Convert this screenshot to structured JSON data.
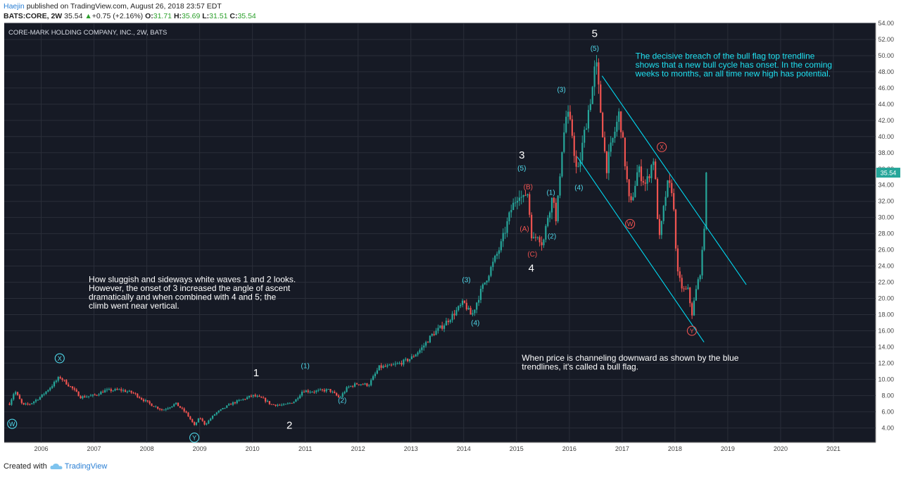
{
  "header": {
    "author": "Haejin",
    "published": " published on TradingView.com, August 26, 2018 23:57 EDT",
    "symbol": "BATS:CORE, 2W",
    "last": "35.54",
    "change_arrow": "▲",
    "change": "+0.75 (+2.16%)",
    "open_label": "O:",
    "open": "31.71",
    "high_label": "H:",
    "high": "35.69",
    "low_label": "L:",
    "low": "31.51",
    "close_label": "C:",
    "close": "35.54"
  },
  "colors": {
    "background": "#161a25",
    "grid": "#2a2e39",
    "up": "#26a69a",
    "down": "#ef5350",
    "trendline": "#00d8f0",
    "note_cyan": "#1fe0f0",
    "note_white": "#ffffff",
    "price_tag": "#26a69a"
  },
  "footer": {
    "created_with": "Created with",
    "brand": "TradingView",
    "logo_icon": "tradingview-cloud-icon"
  },
  "chart_data": {
    "type": "candlestick",
    "title": "CORE-MARK HOLDING COMPANY, INC., 2W, BATS",
    "xlabel": "",
    "ylabel": "",
    "x_range": [
      2005.3,
      2021.8
    ],
    "ylim": [
      2.2,
      54.0
    ],
    "grid": true,
    "y_ticks": [
      "4.00",
      "6.00",
      "8.00",
      "10.00",
      "12.00",
      "14.00",
      "16.00",
      "18.00",
      "20.00",
      "22.00",
      "24.00",
      "26.00",
      "28.00",
      "30.00",
      "32.00",
      "34.00",
      "36.00",
      "38.00",
      "40.00",
      "42.00",
      "44.00",
      "46.00",
      "48.00",
      "50.00",
      "52.00",
      "54.00"
    ],
    "x_ticks": [
      "2006",
      "2007",
      "2008",
      "2009",
      "2010",
      "2011",
      "2012",
      "2013",
      "2014",
      "2015",
      "2016",
      "2017",
      "2018",
      "2019",
      "2020",
      "2021"
    ],
    "last_price_label": "35.54",
    "price_path": [
      [
        2005.4,
        7.0
      ],
      [
        2005.5,
        8.6
      ],
      [
        2005.65,
        6.8
      ],
      [
        2005.8,
        7.0
      ],
      [
        2006.0,
        7.9
      ],
      [
        2006.2,
        9.2
      ],
      [
        2006.35,
        10.3
      ],
      [
        2006.4,
        10.0
      ],
      [
        2006.6,
        8.8
      ],
      [
        2006.75,
        7.8
      ],
      [
        2007.0,
        8.0
      ],
      [
        2007.2,
        8.6
      ],
      [
        2007.5,
        8.7
      ],
      [
        2007.75,
        8.3
      ],
      [
        2007.9,
        7.6
      ],
      [
        2008.1,
        6.8
      ],
      [
        2008.3,
        6.2
      ],
      [
        2008.55,
        7.0
      ],
      [
        2008.75,
        5.8
      ],
      [
        2008.9,
        4.3
      ],
      [
        2009.0,
        5.3
      ],
      [
        2009.1,
        4.4
      ],
      [
        2009.3,
        5.8
      ],
      [
        2009.6,
        7.0
      ],
      [
        2009.85,
        7.6
      ],
      [
        2010.0,
        8.0
      ],
      [
        2010.2,
        7.6
      ],
      [
        2010.35,
        6.9
      ],
      [
        2010.6,
        6.8
      ],
      [
        2010.8,
        7.3
      ],
      [
        2010.95,
        8.6
      ],
      [
        2011.15,
        8.5
      ],
      [
        2011.45,
        8.7
      ],
      [
        2011.65,
        7.7
      ],
      [
        2011.8,
        9.0
      ],
      [
        2012.0,
        9.5
      ],
      [
        2012.2,
        9.3
      ],
      [
        2012.4,
        11.5
      ],
      [
        2012.6,
        11.6
      ],
      [
        2012.8,
        12.0
      ],
      [
        2013.0,
        12.6
      ],
      [
        2013.2,
        13.8
      ],
      [
        2013.4,
        15.5
      ],
      [
        2013.6,
        16.6
      ],
      [
        2013.8,
        18.0
      ],
      [
        2014.0,
        19.5
      ],
      [
        2014.15,
        17.8
      ],
      [
        2014.3,
        20.5
      ],
      [
        2014.5,
        23.5
      ],
      [
        2014.7,
        26.5
      ],
      [
        2014.9,
        31.0
      ],
      [
        2015.05,
        33.2
      ],
      [
        2015.12,
        32.0
      ],
      [
        2015.2,
        33.5
      ],
      [
        2015.3,
        27.0
      ],
      [
        2015.4,
        28.0
      ],
      [
        2015.5,
        26.6
      ],
      [
        2015.6,
        30.5
      ],
      [
        2015.7,
        33.0
      ],
      [
        2015.75,
        29.0
      ],
      [
        2015.85,
        38.0
      ],
      [
        2015.95,
        43.0
      ],
      [
        2016.05,
        40.5
      ],
      [
        2016.15,
        35.0
      ],
      [
        2016.3,
        41.0
      ],
      [
        2016.45,
        46.5
      ],
      [
        2016.5,
        49.5
      ],
      [
        2016.58,
        44.0
      ],
      [
        2016.7,
        36.0
      ],
      [
        2016.8,
        39.0
      ],
      [
        2016.95,
        43.0
      ],
      [
        2017.05,
        37.0
      ],
      [
        2017.15,
        31.0
      ],
      [
        2017.3,
        36.0
      ],
      [
        2017.45,
        34.0
      ],
      [
        2017.6,
        37.5
      ],
      [
        2017.7,
        27.0
      ],
      [
        2017.85,
        34.0
      ],
      [
        2017.95,
        33.5
      ],
      [
        2018.05,
        23.0
      ],
      [
        2018.15,
        21.0
      ],
      [
        2018.25,
        21.0
      ],
      [
        2018.32,
        18.0
      ],
      [
        2018.4,
        21.0
      ],
      [
        2018.5,
        24.0
      ],
      [
        2018.58,
        31.7
      ],
      [
        2018.62,
        35.54
      ]
    ],
    "trendlines": [
      {
        "name": "upper",
        "from": [
          2016.62,
          47.5
        ],
        "to": [
          2019.35,
          21.7
        ]
      },
      {
        "name": "lower",
        "from": [
          2016.15,
          37.5
        ],
        "to": [
          2018.55,
          14.6
        ]
      }
    ],
    "annotations": [
      {
        "id": "wave-5",
        "text": "5",
        "style": "white",
        "x": 2016.48,
        "y": 52.3
      },
      {
        "id": "wave-(5)-top",
        "text": "(5)",
        "style": "cyan",
        "x": 2016.48,
        "y": 50.6
      },
      {
        "id": "wave-(3)-2016",
        "text": "(3)",
        "style": "cyan",
        "x": 2015.85,
        "y": 45.5
      },
      {
        "id": "wave-(4)-2016",
        "text": "(4)",
        "style": "cyan",
        "x": 2016.18,
        "y": 33.4
      },
      {
        "id": "wave-3",
        "text": "3",
        "style": "white",
        "x": 2015.1,
        "y": 37.3
      },
      {
        "id": "wave-(5)-2015",
        "text": "(5)",
        "style": "cyan",
        "x": 2015.1,
        "y": 35.8
      },
      {
        "id": "wave-(B)",
        "text": "(B)",
        "style": "red",
        "x": 2015.22,
        "y": 33.5
      },
      {
        "id": "wave-(A)",
        "text": "(A)",
        "style": "red",
        "x": 2015.15,
        "y": 28.3
      },
      {
        "id": "wave-(C)",
        "text": "(C)",
        "style": "red",
        "x": 2015.3,
        "y": 25.2
      },
      {
        "id": "wave-(1)-2015",
        "text": "(1)",
        "style": "cyan",
        "x": 2015.65,
        "y": 32.8
      },
      {
        "id": "wave-(2)-2015",
        "text": "(2)",
        "style": "cyan",
        "x": 2015.67,
        "y": 27.4
      },
      {
        "id": "wave-4",
        "text": "4",
        "style": "white",
        "x": 2015.28,
        "y": 23.3
      },
      {
        "id": "wave-(3)-2014",
        "text": "(3)",
        "style": "cyan",
        "x": 2014.05,
        "y": 22.0
      },
      {
        "id": "wave-(4)-2014",
        "text": "(4)",
        "style": "cyan",
        "x": 2014.22,
        "y": 16.7
      },
      {
        "id": "wave-1",
        "text": "1",
        "style": "white",
        "x": 2010.07,
        "y": 10.4
      },
      {
        "id": "wave-(1)-2011",
        "text": "(1)",
        "style": "cyan",
        "x": 2011.0,
        "y": 11.4
      },
      {
        "id": "wave-(2)-2011",
        "text": "(2)",
        "style": "cyan",
        "x": 2011.7,
        "y": 7.1
      },
      {
        "id": "wave-2",
        "text": "2",
        "style": "white",
        "x": 2010.7,
        "y": 3.9
      }
    ],
    "circled_labels": [
      {
        "id": "circle-X-2006",
        "text": "X",
        "style": "cyan",
        "x": 2006.35,
        "y": 12.6
      },
      {
        "id": "circle-W-2005",
        "text": "W",
        "style": "cyan",
        "x": 2005.45,
        "y": 4.5
      },
      {
        "id": "circle-Y-2009",
        "text": "Y",
        "style": "cyan",
        "x": 2008.9,
        "y": 2.8
      },
      {
        "id": "circle-X-2017",
        "text": "X",
        "style": "red",
        "x": 2017.75,
        "y": 38.7
      },
      {
        "id": "circle-W-2017",
        "text": "W",
        "style": "red",
        "x": 2017.15,
        "y": 29.2
      },
      {
        "id": "circle-Y-2018",
        "text": "Y",
        "style": "red",
        "x": 2018.32,
        "y": 16.0
      }
    ],
    "notes": [
      {
        "id": "note-breach",
        "style": "cyan",
        "x": 2017.25,
        "y": 49.6,
        "lines": [
          "The decisive breach of the bull flag top trendline",
          "shows that a new bull cycle has onset. In the coming",
          "weeks to months, an all time new high has potential."
        ]
      },
      {
        "id": "note-sluggish",
        "style": "white",
        "x": 2006.9,
        "y": 22.0,
        "lines": [
          "How sluggish and sideways white waves 1 and 2 looks.",
          "However, the onset of 3 increased the angle of ascent",
          "dramatically and when combined with 4 and 5; the",
          "climb went near vertical."
        ]
      },
      {
        "id": "note-bullflag",
        "style": "white",
        "x": 2015.1,
        "y": 12.3,
        "lines": [
          "When price is channeling downward as shown by the blue",
          "trendlines, it's called a bull flag."
        ]
      }
    ]
  }
}
